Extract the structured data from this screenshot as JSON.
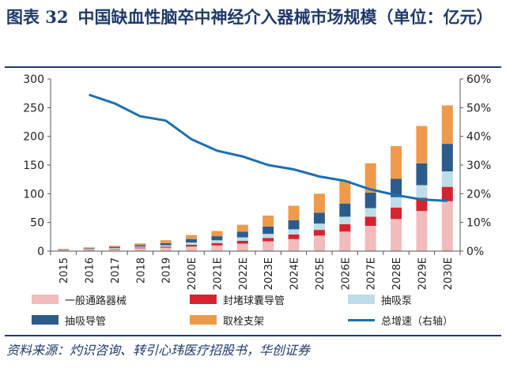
{
  "title": {
    "figure_no": "图表 32",
    "text": "中国缺血性脑卒中神经介入器械市场规模（单位：亿元）"
  },
  "source": "资料来源：灼识咨询、转引心玮医疗招股书，华创证券",
  "colors": {
    "general_access": "#f2bcbc",
    "embolic": "#d7232f",
    "aspiration_pump": "#bcdde9",
    "aspiration_catheter": "#2b5c8c",
    "stent_retriever": "#ef9a4a",
    "growth_line": "#1c6fb3",
    "title": "#1f3a6b"
  },
  "chart_data": {
    "type": "bar",
    "stacked": true,
    "categories": [
      "2015",
      "2016",
      "2017",
      "2018",
      "2019",
      "2020E",
      "2021E",
      "2022E",
      "2023E",
      "2024E",
      "2025E",
      "2026E",
      "2027E",
      "2028E",
      "2029E",
      "2030E"
    ],
    "series": [
      {
        "name": "一般通路器械",
        "key": "general_access",
        "values": [
          1.5,
          2.5,
          3.5,
          5,
          6,
          8,
          10,
          13,
          17,
          21,
          27,
          34,
          44,
          56,
          70,
          87
        ]
      },
      {
        "name": "封堵球囊导管",
        "key": "embolic",
        "values": [
          0.3,
          0.5,
          0.8,
          1.2,
          1.8,
          3,
          4,
          5,
          6,
          8,
          10,
          13,
          16,
          20,
          23,
          25
        ]
      },
      {
        "name": "抽吸泵",
        "key": "aspiration_pump",
        "values": [
          0.5,
          0.8,
          1.2,
          1.8,
          2.5,
          4,
          5,
          6,
          7,
          9,
          11,
          13,
          15,
          18,
          22,
          27
        ]
      },
      {
        "name": "抽吸导管",
        "key": "aspiration_catheter",
        "values": [
          0.8,
          1.2,
          1.8,
          2.5,
          3.7,
          6,
          7,
          10,
          13,
          16,
          19,
          23,
          27,
          32,
          38,
          48
        ]
      },
      {
        "name": "取栓支架",
        "key": "stent_retriever",
        "values": [
          0.9,
          1.5,
          2.2,
          3,
          5,
          7,
          9,
          12,
          19,
          25,
          33,
          40,
          51,
          57,
          65,
          67
        ]
      }
    ],
    "line": {
      "name": "总增速（右轴）",
      "key": "growth_line",
      "axis": "right",
      "values": [
        null,
        54.5,
        51.5,
        47,
        45.5,
        39,
        35,
        33,
        30,
        28.5,
        26,
        24.5,
        21.5,
        19.5,
        18,
        17.5
      ]
    },
    "y_left": {
      "min": 0,
      "max": 300,
      "ticks": [
        "0",
        "50",
        "100",
        "150",
        "200",
        "250",
        "300"
      ],
      "tick_values": [
        0,
        50,
        100,
        150,
        200,
        250,
        300
      ]
    },
    "y_right": {
      "min": 0,
      "max": 60,
      "ticks": [
        "0%",
        "10%",
        "20%",
        "30%",
        "40%",
        "50%",
        "60%"
      ],
      "tick_values": [
        0,
        10,
        20,
        30,
        40,
        50,
        60
      ]
    },
    "legend_position": "bottom",
    "gridlines": false
  }
}
